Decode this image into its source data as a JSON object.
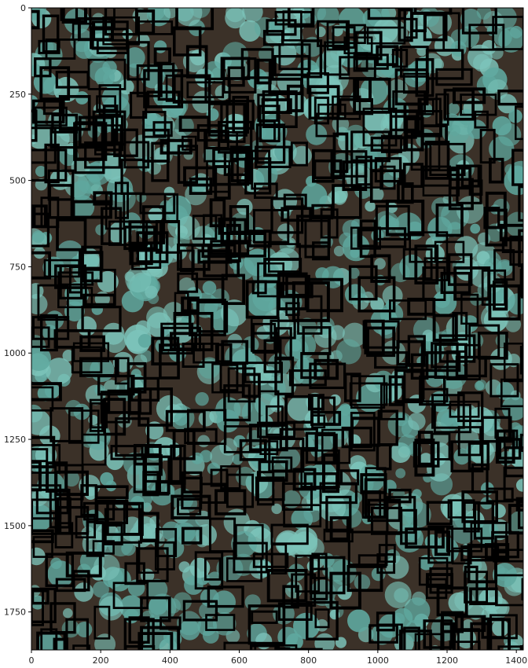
{
  "chart_data": {
    "type": "image-with-boxes",
    "title": "",
    "xlabel": "",
    "ylabel": "",
    "xlim": [
      0,
      1420
    ],
    "ylim": [
      1860,
      0
    ],
    "x_ticks": [
      0,
      200,
      400,
      600,
      800,
      1000,
      1200,
      1400
    ],
    "y_ticks": [
      0,
      250,
      500,
      750,
      1000,
      1250,
      1500,
      1750
    ],
    "grid": false,
    "colors": {
      "box_outline": "#000000",
      "canopy": "#5fa89f",
      "canopy_light": "#7cc4ba",
      "ground": "#3b3128",
      "frame": "#000000",
      "background": "#ffffff"
    },
    "image_description_icon": "aerial-forest-canopy-with-detection-boxes"
  }
}
